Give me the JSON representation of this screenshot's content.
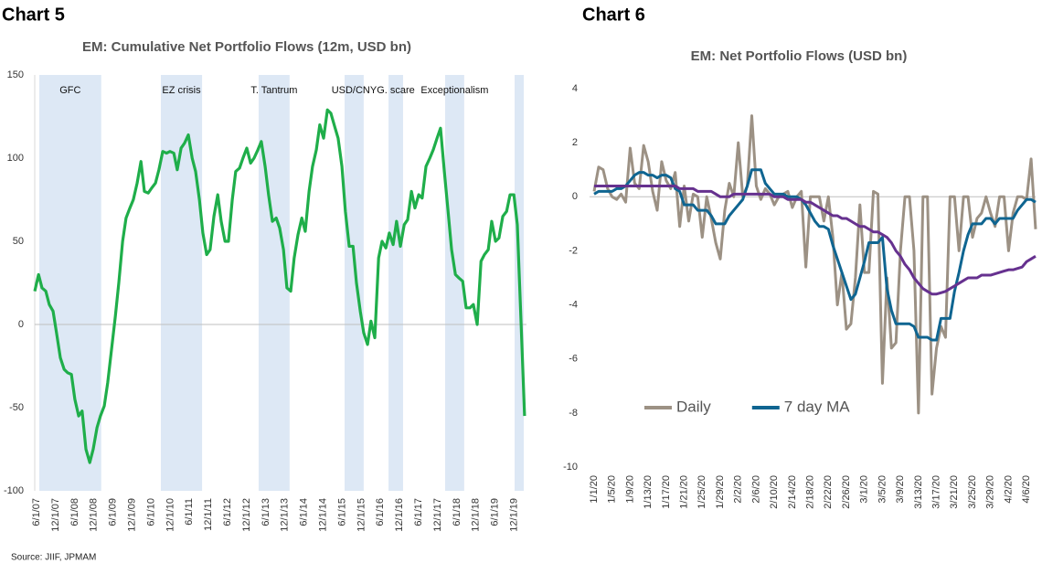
{
  "chart_data": [
    {
      "type": "line",
      "label": "Chart 5",
      "title": "EM: Cumulative Net Portfolio Flows (12m, USD bn)",
      "source": "Source: JIIF, JPMAM",
      "x": [
        2007.37,
        2007.47,
        2007.56,
        2007.66,
        2007.75,
        2007.85,
        2007.94,
        2008.04,
        2008.14,
        2008.23,
        2008.33,
        2008.42,
        2008.52,
        2008.61,
        2008.71,
        2008.81,
        2008.9,
        2009.0,
        2009.09,
        2009.19,
        2009.28,
        2009.38,
        2009.48,
        2009.57,
        2009.67,
        2009.76,
        2009.86,
        2009.95,
        2010.05,
        2010.15,
        2010.24,
        2010.34,
        2010.43,
        2010.53,
        2010.62,
        2010.72,
        2010.82,
        2010.91,
        2011.01,
        2011.1,
        2011.2,
        2011.29,
        2011.39,
        2011.49,
        2011.58,
        2011.68,
        2011.77,
        2011.87,
        2011.96,
        2012.06,
        2012.16,
        2012.25,
        2012.35,
        2012.44,
        2012.54,
        2012.63,
        2012.73,
        2012.82,
        2012.92,
        2013.02,
        2013.11,
        2013.21,
        2013.3,
        2013.4,
        2013.49,
        2013.59,
        2013.69,
        2013.78,
        2013.88,
        2013.97,
        2014.07,
        2014.16,
        2014.26,
        2014.36,
        2014.45,
        2014.55,
        2014.64,
        2014.74,
        2014.83,
        2014.93,
        2015.03,
        2015.12,
        2015.22,
        2015.31,
        2015.41,
        2015.5,
        2015.6,
        2015.7,
        2015.79,
        2015.89,
        2015.98,
        2016.08,
        2016.17,
        2016.27,
        2016.37,
        2016.46,
        2016.56,
        2016.65,
        2016.75,
        2016.84,
        2016.94,
        2017.04,
        2017.13,
        2017.23,
        2017.32,
        2017.42,
        2017.51,
        2017.61,
        2017.71,
        2017.8,
        2017.9,
        2017.99,
        2018.09,
        2018.18,
        2018.28,
        2018.38,
        2018.47,
        2018.57,
        2018.66,
        2018.76,
        2018.85,
        2018.95,
        2019.05,
        2019.14,
        2019.24,
        2019.33,
        2019.43,
        2019.52,
        2019.62,
        2019.72,
        2019.81,
        2019.91,
        2020.0,
        2020.1,
        2020.19
      ],
      "series": [
        {
          "color": "#1fae4a",
          "values": [
            20,
            30,
            22,
            20,
            12,
            8,
            -5,
            -20,
            -27,
            -29,
            -30,
            -45,
            -55,
            -52,
            -75,
            -83,
            -75,
            -62,
            -55,
            -49,
            -35,
            -15,
            5,
            25,
            50,
            64,
            70,
            75,
            85,
            98,
            80,
            79,
            82,
            85,
            93,
            104,
            103,
            104,
            103,
            93,
            106,
            109,
            114,
            100,
            92,
            75,
            55,
            42,
            45,
            65,
            78,
            62,
            50,
            50,
            75,
            92,
            94,
            100,
            106,
            97,
            100,
            105,
            110,
            95,
            78,
            62,
            64,
            58,
            45,
            22,
            20,
            40,
            54,
            64,
            56,
            80,
            95,
            105,
            120,
            112,
            129,
            127,
            119,
            112,
            95,
            68,
            47,
            47,
            25,
            8,
            -5,
            -12,
            2,
            -8,
            40,
            50,
            46,
            55,
            48,
            62,
            47,
            60,
            63,
            80,
            70,
            78,
            76,
            95,
            100,
            105,
            112,
            118,
            92,
            70,
            45,
            30,
            28,
            26,
            10,
            10,
            12,
            0,
            38,
            42,
            45,
            62,
            50,
            52,
            65,
            68,
            78,
            78,
            60,
            0,
            -55
          ]
        }
      ],
      "bands": [
        {
          "label": "GFC",
          "start": 2007.49,
          "end": 2009.11
        },
        {
          "label": "EZ crisis",
          "start": 2010.67,
          "end": 2011.75
        },
        {
          "label": "T. Tantrum",
          "start": 2013.23,
          "end": 2014.04
        },
        {
          "label": "USD/CNY",
          "start": 2015.48,
          "end": 2015.98
        },
        {
          "label": "G. scare",
          "start": 2016.63,
          "end": 2017.01
        },
        {
          "label": "Exceptionalism",
          "start": 2018.11,
          "end": 2018.61
        },
        {
          "start": 2019.93,
          "end": 2020.17
        }
      ],
      "band_color": "#dde8f5",
      "xlim": [
        2007.37,
        2020.24
      ],
      "xticks": [
        {
          "value": 2007.42,
          "label": "6/1/07"
        },
        {
          "value": 2007.92,
          "label": "12/1/07"
        },
        {
          "value": 2008.42,
          "label": "6/1/08"
        },
        {
          "value": 2008.92,
          "label": "12/1/08"
        },
        {
          "value": 2009.42,
          "label": "6/1/09"
        },
        {
          "value": 2009.92,
          "label": "12/1/09"
        },
        {
          "value": 2010.42,
          "label": "6/1/10"
        },
        {
          "value": 2010.92,
          "label": "12/1/10"
        },
        {
          "value": 2011.42,
          "label": "6/1/11"
        },
        {
          "value": 2011.92,
          "label": "12/1/11"
        },
        {
          "value": 2012.42,
          "label": "6/1/12"
        },
        {
          "value": 2012.92,
          "label": "12/1/12"
        },
        {
          "value": 2013.42,
          "label": "6/1/13"
        },
        {
          "value": 2013.92,
          "label": "12/1/13"
        },
        {
          "value": 2014.42,
          "label": "6/1/14"
        },
        {
          "value": 2014.92,
          "label": "12/1/14"
        },
        {
          "value": 2015.42,
          "label": "6/1/15"
        },
        {
          "value": 2015.92,
          "label": "12/1/15"
        },
        {
          "value": 2016.42,
          "label": "6/1/16"
        },
        {
          "value": 2016.92,
          "label": "12/1/16"
        },
        {
          "value": 2017.42,
          "label": "6/1/17"
        },
        {
          "value": 2017.92,
          "label": "12/1/17"
        },
        {
          "value": 2018.42,
          "label": "6/1/18"
        },
        {
          "value": 2018.92,
          "label": "12/1/18"
        },
        {
          "value": 2019.42,
          "label": "6/1/19"
        },
        {
          "value": 2019.92,
          "label": "12/1/19"
        }
      ],
      "ylim": [
        -100,
        150
      ],
      "yticks": [
        -100,
        -50,
        0,
        50,
        100,
        150
      ],
      "grid": false
    },
    {
      "type": "line",
      "label": "Chart 6",
      "title": "EM: Net Portfolio Flows (USD bn)",
      "categories": [
        "1/1/20",
        null,
        null,
        null,
        "1/5/20",
        null,
        null,
        null,
        "1/9/20",
        null,
        null,
        null,
        "1/13/20",
        null,
        null,
        null,
        "1/17/20",
        null,
        null,
        null,
        "1/21/20",
        null,
        null,
        null,
        "1/25/20",
        null,
        null,
        null,
        "1/29/20",
        null,
        null,
        null,
        "2/2/20",
        null,
        null,
        null,
        "2/6/20",
        null,
        null,
        null,
        "2/10/20",
        null,
        null,
        null,
        "2/14/20",
        null,
        null,
        null,
        "2/18/20",
        null,
        null,
        null,
        "2/22/20",
        null,
        null,
        null,
        "2/26/20",
        null,
        null,
        null,
        "3/1/20",
        null,
        null,
        null,
        "3/5/20",
        null,
        null,
        null,
        "3/9/20",
        null,
        null,
        null,
        "3/13/20",
        null,
        null,
        null,
        "3/17/20",
        null,
        null,
        null,
        "3/21/20",
        null,
        null,
        null,
        "3/25/20",
        null,
        null,
        null,
        "3/29/20",
        null,
        null,
        null,
        "4/2/20",
        null,
        null,
        null,
        "4/6/20",
        null,
        null
      ],
      "series": [
        {
          "name": "Daily",
          "color": "#9c9184",
          "values": [
            0.2,
            1.1,
            1.0,
            0.3,
            0.0,
            -0.1,
            0.1,
            -0.2,
            1.8,
            0.5,
            0.3,
            1.9,
            1.3,
            0.2,
            -0.5,
            1.3,
            0.6,
            0.3,
            0.9,
            -1.1,
            0.4,
            -0.9,
            0.1,
            0.0,
            -1.5,
            0.0,
            -0.8,
            -1.7,
            -2.3,
            -0.5,
            0.5,
            0.0,
            2.0,
            0.0,
            0.4,
            3.0,
            0.4,
            -0.1,
            0.3,
            0.1,
            -0.3,
            0.0,
            0.1,
            0.2,
            -0.4,
            0.0,
            0.2,
            -2.6,
            0.0,
            0.0,
            0.0,
            -0.9,
            0.0,
            -1.5,
            -4.0,
            -2.8,
            -4.9,
            -4.7,
            -3.0,
            -0.3,
            -2.8,
            -2.8,
            0.2,
            0.1,
            -6.9,
            -3.0,
            -5.6,
            -5.4,
            -2.0,
            0.0,
            0.0,
            -2.0,
            -8.0,
            0.0,
            0.0,
            -7.3,
            -5.6,
            -4.8,
            -5.2,
            0.0,
            0.0,
            -2.0,
            0.0,
            0.0,
            -1.5,
            -0.8,
            -0.6,
            0.0,
            -0.6,
            -1.1,
            0.0,
            0.0,
            -2.0,
            -0.6,
            0.0,
            0.0,
            -0.1,
            1.4,
            -1.2
          ]
        },
        {
          "name": "7 day MA",
          "color": "#0f6591",
          "values": [
            0.1,
            0.2,
            0.2,
            0.2,
            0.2,
            0.3,
            0.3,
            0.4,
            0.6,
            0.8,
            0.9,
            0.9,
            0.8,
            0.8,
            0.7,
            0.8,
            0.8,
            0.7,
            0.3,
            0.2,
            -0.3,
            -0.3,
            -0.3,
            -0.5,
            -0.5,
            -0.5,
            -0.7,
            -1.0,
            -1.0,
            -1.0,
            -0.7,
            -0.5,
            -0.3,
            -0.1,
            0.4,
            1.0,
            1.0,
            1.0,
            0.5,
            0.3,
            0.1,
            0.1,
            0.1,
            0.0,
            0.0,
            0.0,
            -0.1,
            -0.3,
            -0.6,
            -0.9,
            -1.1,
            -1.1,
            -1.2,
            -1.8,
            -2.3,
            -2.8,
            -3.3,
            -3.8,
            -3.6,
            -3.0,
            -2.4,
            -1.7,
            -1.7,
            -1.7,
            -1.5,
            -3.4,
            -4.2,
            -4.7,
            -4.7,
            -4.7,
            -4.7,
            -4.8,
            -5.2,
            -5.2,
            -5.2,
            -5.3,
            -5.3,
            -4.5,
            -4.5,
            -4.5,
            -3.5,
            -2.8,
            -2.0,
            -1.4,
            -1.0,
            -1.0,
            -1.0,
            -0.8,
            -0.8,
            -1.0,
            -0.8,
            -0.8,
            -0.8,
            -0.8,
            -0.5,
            -0.3,
            -0.1,
            -0.1,
            -0.2
          ]
        },
        {
          "color": "#66318f",
          "values": [
            0.4,
            0.4,
            0.4,
            0.4,
            0.4,
            0.4,
            0.4,
            0.4,
            0.4,
            0.4,
            0.4,
            0.4,
            0.4,
            0.4,
            0.4,
            0.4,
            0.4,
            0.4,
            0.4,
            0.3,
            0.3,
            0.3,
            0.3,
            0.2,
            0.2,
            0.2,
            0.2,
            0.1,
            0.0,
            0.0,
            0.0,
            0.1,
            0.1,
            0.1,
            0.1,
            0.1,
            0.1,
            0.1,
            0.1,
            0.1,
            0.0,
            0.0,
            0.0,
            -0.1,
            -0.1,
            -0.1,
            -0.1,
            -0.2,
            -0.2,
            -0.3,
            -0.4,
            -0.5,
            -0.6,
            -0.7,
            -0.7,
            -0.8,
            -0.8,
            -0.9,
            -1.0,
            -1.1,
            -1.1,
            -1.2,
            -1.3,
            -1.3,
            -1.4,
            -1.5,
            -1.7,
            -2.0,
            -2.2,
            -2.5,
            -2.7,
            -3.0,
            -3.2,
            -3.4,
            -3.5,
            -3.6,
            -3.6,
            -3.55,
            -3.5,
            -3.4,
            -3.3,
            -3.2,
            -3.1,
            -3.0,
            -3.0,
            -3.0,
            -2.9,
            -2.9,
            -2.9,
            -2.85,
            -2.8,
            -2.75,
            -2.7,
            -2.7,
            -2.65,
            -2.6,
            -2.4,
            -2.3,
            -2.2
          ]
        }
      ],
      "ylim": [
        -10,
        4
      ],
      "yticks": [
        -10,
        -8,
        -6,
        -4,
        -2,
        0,
        2,
        4
      ],
      "grid": false,
      "legend": "lower left"
    }
  ]
}
